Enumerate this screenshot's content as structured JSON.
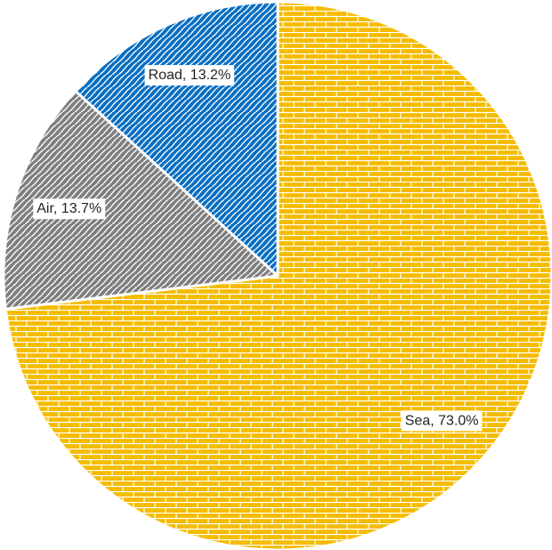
{
  "chart_data": {
    "type": "pie",
    "values": [
      73.0,
      13.7,
      13.2
    ],
    "value_labels": [
      "Sea, 73.0%",
      "Air, 13.7%",
      "Road, 13.2%"
    ],
    "colors": [
      "#f5bb00",
      "#7f7f7f",
      "#0a6fc2"
    ]
  }
}
